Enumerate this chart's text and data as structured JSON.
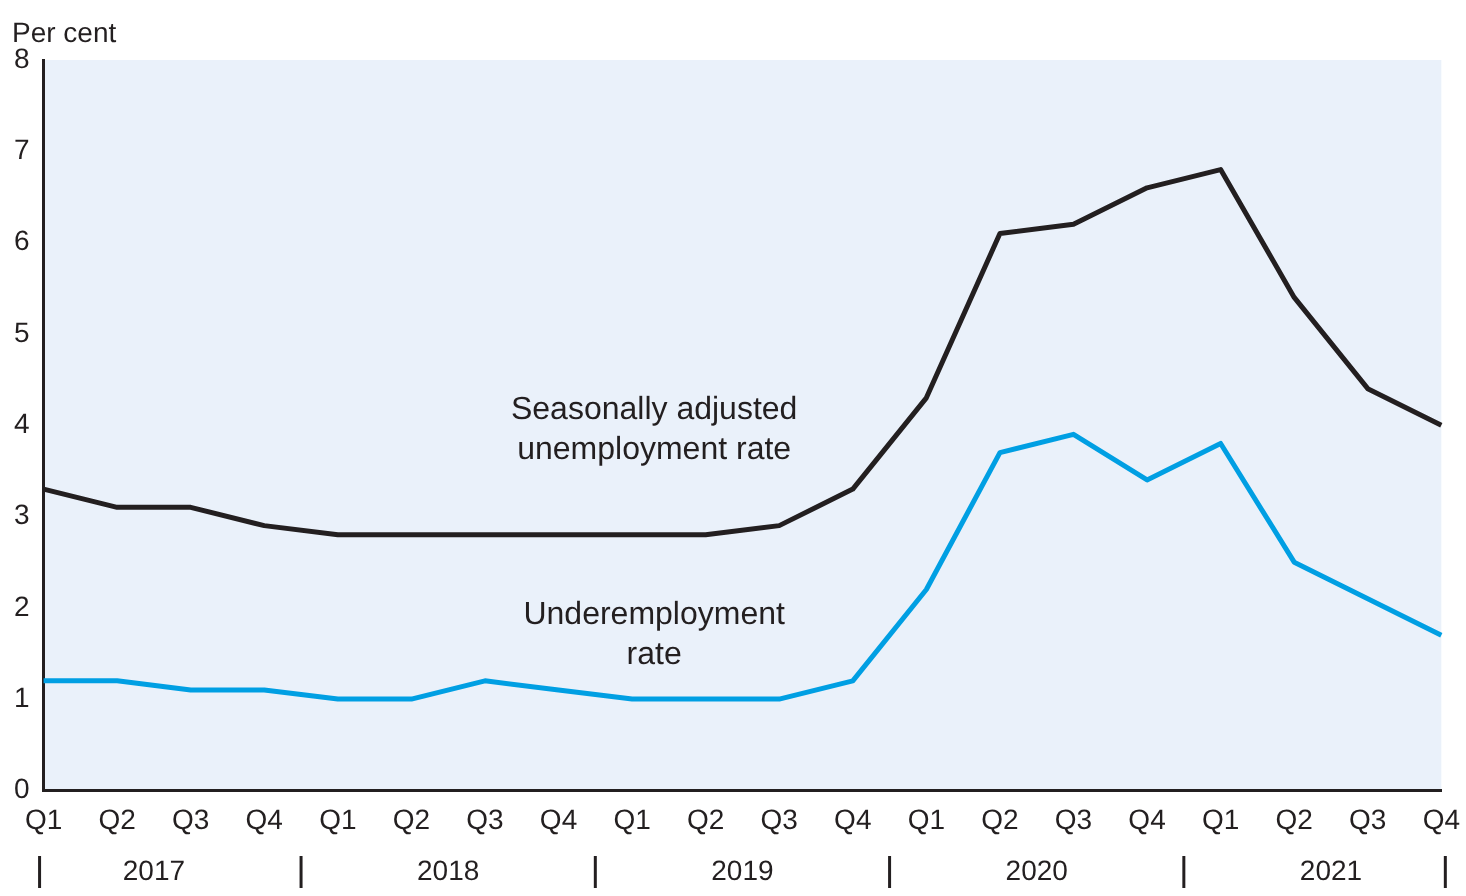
{
  "chart_data": {
    "type": "line",
    "ylabel": "Per cent",
    "categories": [
      "Q1",
      "Q2",
      "Q3",
      "Q4",
      "Q1",
      "Q2",
      "Q3",
      "Q4",
      "Q1",
      "Q2",
      "Q3",
      "Q4",
      "Q1",
      "Q2",
      "Q3",
      "Q4",
      "Q1",
      "Q2",
      "Q3",
      "Q4"
    ],
    "series": [
      {
        "name": "Seasonally adjusted unemployment rate",
        "color": "#231f20",
        "values": [
          3.3,
          3.1,
          3.1,
          2.9,
          2.8,
          2.8,
          2.8,
          2.8,
          2.8,
          2.8,
          2.9,
          3.3,
          4.3,
          6.1,
          6.2,
          6.6,
          6.8,
          5.4,
          4.4,
          4.0
        ]
      },
      {
        "name": "Underemployment rate",
        "color": "#009fe3",
        "values": [
          1.2,
          1.2,
          1.1,
          1.1,
          1.0,
          1.0,
          1.2,
          1.1,
          1.0,
          1.0,
          1.0,
          1.2,
          2.2,
          3.7,
          3.9,
          3.4,
          3.8,
          2.5,
          2.1,
          1.7
        ]
      }
    ],
    "ylim": [
      0,
      8
    ],
    "yticks": [
      0,
      1,
      2,
      3,
      4,
      5,
      6,
      7,
      8
    ],
    "grid": false,
    "legend": false,
    "marker": "none",
    "line_style": "solid",
    "annotations": [
      "2017",
      "2018",
      "2019",
      "2020",
      "2021"
    ]
  }
}
